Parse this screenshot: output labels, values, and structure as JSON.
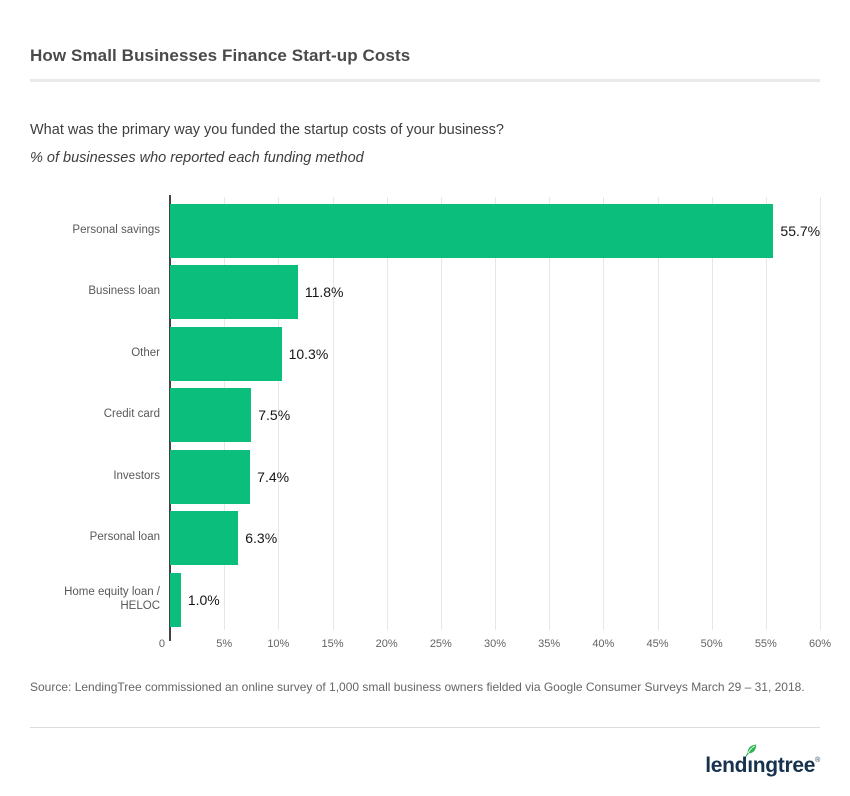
{
  "page": {
    "title": "How Small Businesses Finance Start-up Costs",
    "question": "What was the primary way you funded the startup costs of your business?",
    "subtitle": "% of businesses who reported each funding method",
    "source": "Source: LendingTree commissioned an online survey of 1,000 small business owners fielded via Google Consumer Surveys March 29 – 31, 2018."
  },
  "chart_data": {
    "type": "bar",
    "orientation": "horizontal",
    "title": "What was the primary way you funded the startup costs of your business?",
    "subtitle": "% of businesses who reported each funding method",
    "categories": [
      "Personal savings",
      "Business loan",
      "Other",
      "Credit card",
      "Investors",
      "Personal loan",
      "Home equity loan / HELOC"
    ],
    "values": [
      55.7,
      11.8,
      10.3,
      7.5,
      7.4,
      6.3,
      1.0
    ],
    "value_labels": [
      "55.7%",
      "11.8%",
      "10.3%",
      "7.5%",
      "7.4%",
      "6.3%",
      "1.0%"
    ],
    "x_ticks": [
      "0",
      "5%",
      "10%",
      "15%",
      "20%",
      "25%",
      "30%",
      "35%",
      "40%",
      "45%",
      "50%",
      "55%",
      "60%"
    ],
    "xlim": [
      0,
      60
    ],
    "xlabel": "",
    "ylabel": "",
    "grid": true,
    "legend": false,
    "bar_color": "#0cbe7b",
    "gridline_color": "#e7e7e7",
    "axis_color": "#434343"
  },
  "footer": {
    "brand_name": "LendingTree",
    "logo_text_pre": "lend",
    "logo_text_i": "ı",
    "logo_text_post": "ngtree",
    "logo_trademark": "®",
    "logo_color": "#16324f",
    "leaf_color": "#2eb354"
  }
}
